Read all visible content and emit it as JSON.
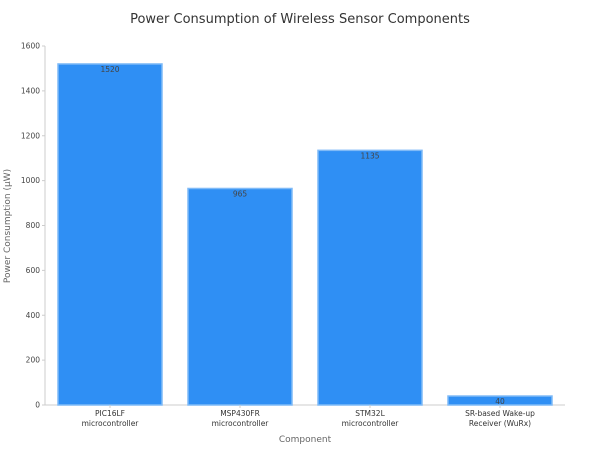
{
  "chart_data": {
    "type": "bar",
    "title": "Power Consumption of Wireless Sensor Components",
    "xlabel": "Component",
    "ylabel": "Power Consumption (µW)",
    "categories": [
      [
        "PIC16LF",
        "microcontroller"
      ],
      [
        "MSP430FR",
        "microcontroller"
      ],
      [
        "STM32L",
        "microcontroller"
      ],
      [
        "SR-based Wake-up",
        "Receiver (WuRx)"
      ]
    ],
    "values": [
      1520,
      965,
      1135,
      40
    ],
    "data_labels": [
      "1520",
      "965",
      "1135",
      "40"
    ],
    "ylim": [
      0,
      1600
    ],
    "yticks": [
      0,
      200,
      400,
      600,
      800,
      1000,
      1200,
      1400,
      1600
    ],
    "grid": false,
    "legend": "none",
    "colors": {
      "bar": "#2f8ff4",
      "bar_edge": "#7fbaf7",
      "axis": "#cccccc"
    }
  }
}
